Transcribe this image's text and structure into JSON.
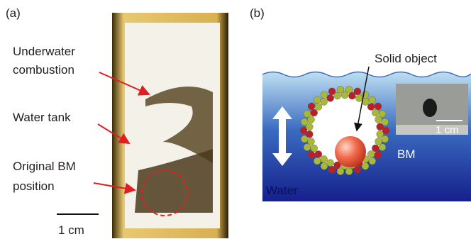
{
  "panel_a": {
    "label": "(a)",
    "annotations": [
      {
        "lines": [
          "Underwater",
          "combustion"
        ]
      },
      {
        "lines": [
          "Water tank"
        ]
      },
      {
        "lines": [
          "Original BM",
          "position"
        ]
      }
    ],
    "scale_bar": "1 cm"
  },
  "panel_b": {
    "label": "(b)",
    "solid_object": "Solid object",
    "inset_scale_bar": "1 cm",
    "bm": "BM",
    "water": "Water"
  }
}
